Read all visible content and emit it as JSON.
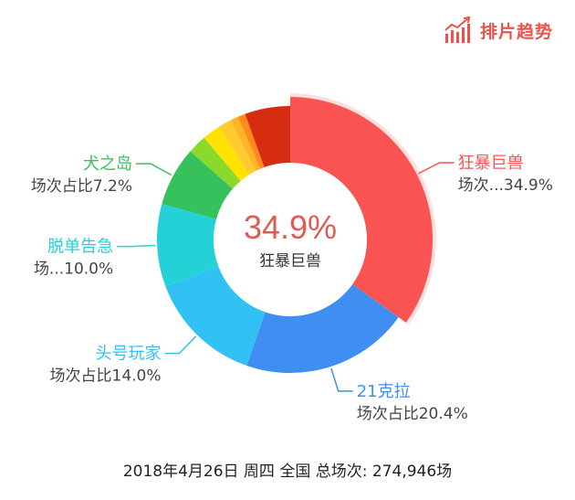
{
  "brand": {
    "label": "排片趋势",
    "color": "#e8534b",
    "icon": "trend-chart-icon"
  },
  "center": {
    "percent": "34.9%",
    "name": "狂暴巨兽"
  },
  "footer": {
    "text": "2018年4月26日 周四 全国 总场次: 274,946场"
  },
  "chart_data": {
    "type": "pie",
    "style": "donut",
    "unit": "%",
    "highlighted": "狂暴巨兽",
    "slices": [
      {
        "name": "狂暴巨兽",
        "value": 34.9,
        "color": "#f95452",
        "label_line1": "狂暴巨兽",
        "label_line2": "场次...34.9%"
      },
      {
        "name": "21克拉",
        "value": 20.4,
        "color": "#3f8ef2",
        "label_line1": "21克拉",
        "label_line2": "场次占比20.4%"
      },
      {
        "name": "头号玩家",
        "value": 14.0,
        "color": "#31c2f3",
        "label_line1": "头号玩家",
        "label_line2": "场次占比14.0%"
      },
      {
        "name": "脱单告急",
        "value": 10.0,
        "color": "#24d1d6",
        "label_line1": "脱单告急",
        "label_line2": "场...10.0%"
      },
      {
        "name": "犬之岛",
        "value": 7.2,
        "color": "#37c15d",
        "label_line1": "犬之岛",
        "label_line2": "场次占比7.2%"
      },
      {
        "name": "",
        "value": 2.3,
        "color": "#8ad92b"
      },
      {
        "name": "",
        "value": 2.2,
        "color": "#ffe200"
      },
      {
        "name": "",
        "value": 1.6,
        "color": "#ffcb2f"
      },
      {
        "name": "",
        "value": 1.0,
        "color": "#ffb428"
      },
      {
        "name": "",
        "value": 0.9,
        "color": "#ff8a1e"
      },
      {
        "name": "",
        "value": 5.5,
        "color": "#d62d10"
      }
    ]
  }
}
